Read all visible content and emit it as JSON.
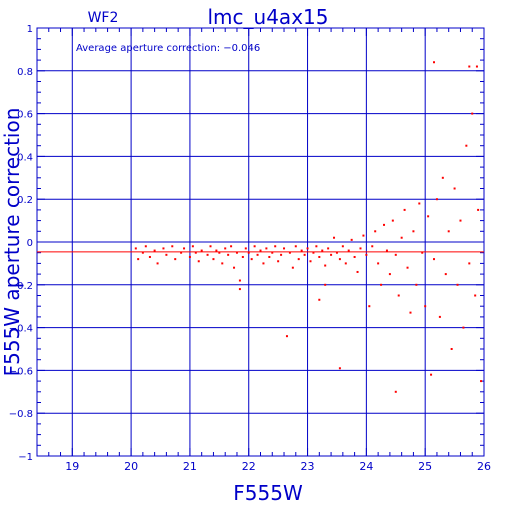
{
  "chart_data": {
    "type": "scatter",
    "panel_label": "WF2",
    "title": "lmc_u4ax15",
    "annotation": "Average aperture correction: −0.046",
    "xlabel": "F555W",
    "ylabel": "F555W aperture correction",
    "xlim": [
      18.4,
      26
    ],
    "ylim": [
      -1,
      1
    ],
    "x_ticks": [
      "19",
      "20",
      "21",
      "22",
      "23",
      "24",
      "25",
      "26"
    ],
    "y_ticks": [
      "1",
      "0.8",
      "0.6",
      "0.4",
      "0.2",
      "0",
      "−0.2",
      "−0.4",
      "−0.6",
      "−0.8",
      "−1"
    ],
    "grid": true,
    "average_line": -0.046,
    "colors": {
      "axes": "#0000c8",
      "points": "#ff0000",
      "line": "#ff0000"
    },
    "points": [
      [
        20.08,
        -0.03
      ],
      [
        20.12,
        -0.08
      ],
      [
        20.2,
        -0.05
      ],
      [
        20.25,
        -0.02
      ],
      [
        20.32,
        -0.07
      ],
      [
        20.4,
        -0.04
      ],
      [
        20.45,
        -0.1
      ],
      [
        20.55,
        -0.03
      ],
      [
        20.6,
        -0.06
      ],
      [
        20.7,
        -0.02
      ],
      [
        20.75,
        -0.08
      ],
      [
        20.85,
        -0.05
      ],
      [
        20.9,
        -0.03
      ],
      [
        21.0,
        -0.07
      ],
      [
        21.05,
        -0.02
      ],
      [
        21.1,
        -0.05
      ],
      [
        21.15,
        -0.09
      ],
      [
        21.2,
        -0.04
      ],
      [
        21.3,
        -0.06
      ],
      [
        21.35,
        -0.02
      ],
      [
        21.4,
        -0.08
      ],
      [
        21.45,
        -0.04
      ],
      [
        21.5,
        -0.05
      ],
      [
        21.55,
        -0.1
      ],
      [
        21.6,
        -0.03
      ],
      [
        21.65,
        -0.06
      ],
      [
        21.7,
        -0.02
      ],
      [
        21.75,
        -0.12
      ],
      [
        21.8,
        -0.05
      ],
      [
        21.85,
        -0.18
      ],
      [
        21.85,
        -0.22
      ],
      [
        21.9,
        -0.07
      ],
      [
        21.95,
        -0.03
      ],
      [
        22.0,
        -0.05
      ],
      [
        22.05,
        -0.08
      ],
      [
        22.1,
        -0.02
      ],
      [
        22.15,
        -0.06
      ],
      [
        22.2,
        -0.04
      ],
      [
        22.25,
        -0.1
      ],
      [
        22.3,
        -0.03
      ],
      [
        22.35,
        -0.07
      ],
      [
        22.4,
        -0.05
      ],
      [
        22.45,
        -0.02
      ],
      [
        22.5,
        -0.09
      ],
      [
        22.55,
        -0.06
      ],
      [
        22.6,
        -0.03
      ],
      [
        22.65,
        -0.44
      ],
      [
        22.7,
        -0.05
      ],
      [
        22.75,
        -0.12
      ],
      [
        22.8,
        -0.02
      ],
      [
        22.85,
        -0.08
      ],
      [
        22.9,
        -0.04
      ],
      [
        22.95,
        -0.06
      ],
      [
        23.0,
        -0.03
      ],
      [
        23.05,
        -0.09
      ],
      [
        23.1,
        -0.05
      ],
      [
        23.15,
        -0.02
      ],
      [
        23.2,
        -0.07
      ],
      [
        23.2,
        -0.27
      ],
      [
        23.25,
        -0.04
      ],
      [
        23.3,
        -0.11
      ],
      [
        23.3,
        -0.2
      ],
      [
        23.35,
        -0.03
      ],
      [
        23.4,
        -0.06
      ],
      [
        23.45,
        0.02
      ],
      [
        23.5,
        -0.05
      ],
      [
        23.55,
        -0.08
      ],
      [
        23.55,
        -0.59
      ],
      [
        23.6,
        -0.02
      ],
      [
        23.65,
        -0.1
      ],
      [
        23.7,
        -0.04
      ],
      [
        23.75,
        0.01
      ],
      [
        23.8,
        -0.07
      ],
      [
        23.85,
        -0.14
      ],
      [
        23.9,
        -0.03
      ],
      [
        23.95,
        0.03
      ],
      [
        24.0,
        -0.06
      ],
      [
        24.05,
        -0.3
      ],
      [
        24.1,
        -0.02
      ],
      [
        24.15,
        0.05
      ],
      [
        24.2,
        -0.1
      ],
      [
        24.25,
        -0.2
      ],
      [
        24.3,
        0.08
      ],
      [
        24.35,
        -0.04
      ],
      [
        24.4,
        -0.15
      ],
      [
        24.45,
        0.1
      ],
      [
        24.5,
        -0.06
      ],
      [
        24.5,
        -0.7
      ],
      [
        24.55,
        -0.25
      ],
      [
        24.6,
        0.02
      ],
      [
        24.65,
        0.15
      ],
      [
        24.7,
        -0.12
      ],
      [
        24.75,
        -0.33
      ],
      [
        24.8,
        0.05
      ],
      [
        24.85,
        -0.2
      ],
      [
        24.9,
        0.18
      ],
      [
        24.95,
        -0.05
      ],
      [
        25.0,
        -0.3
      ],
      [
        25.05,
        0.12
      ],
      [
        25.1,
        -0.62
      ],
      [
        25.15,
        -0.08
      ],
      [
        25.2,
        0.2
      ],
      [
        25.25,
        -0.35
      ],
      [
        25.3,
        0.3
      ],
      [
        25.35,
        -0.15
      ],
      [
        25.4,
        0.05
      ],
      [
        25.45,
        -0.5
      ],
      [
        25.5,
        0.25
      ],
      [
        25.55,
        -0.2
      ],
      [
        25.6,
        0.1
      ],
      [
        25.65,
        -0.4
      ],
      [
        25.7,
        0.45
      ],
      [
        25.75,
        -0.1
      ],
      [
        25.8,
        0.6
      ],
      [
        25.85,
        -0.25
      ],
      [
        25.9,
        0.15
      ],
      [
        25.95,
        -0.65
      ],
      [
        25.15,
        0.84
      ],
      [
        25.75,
        0.82
      ],
      [
        25.88,
        0.82
      ]
    ]
  }
}
